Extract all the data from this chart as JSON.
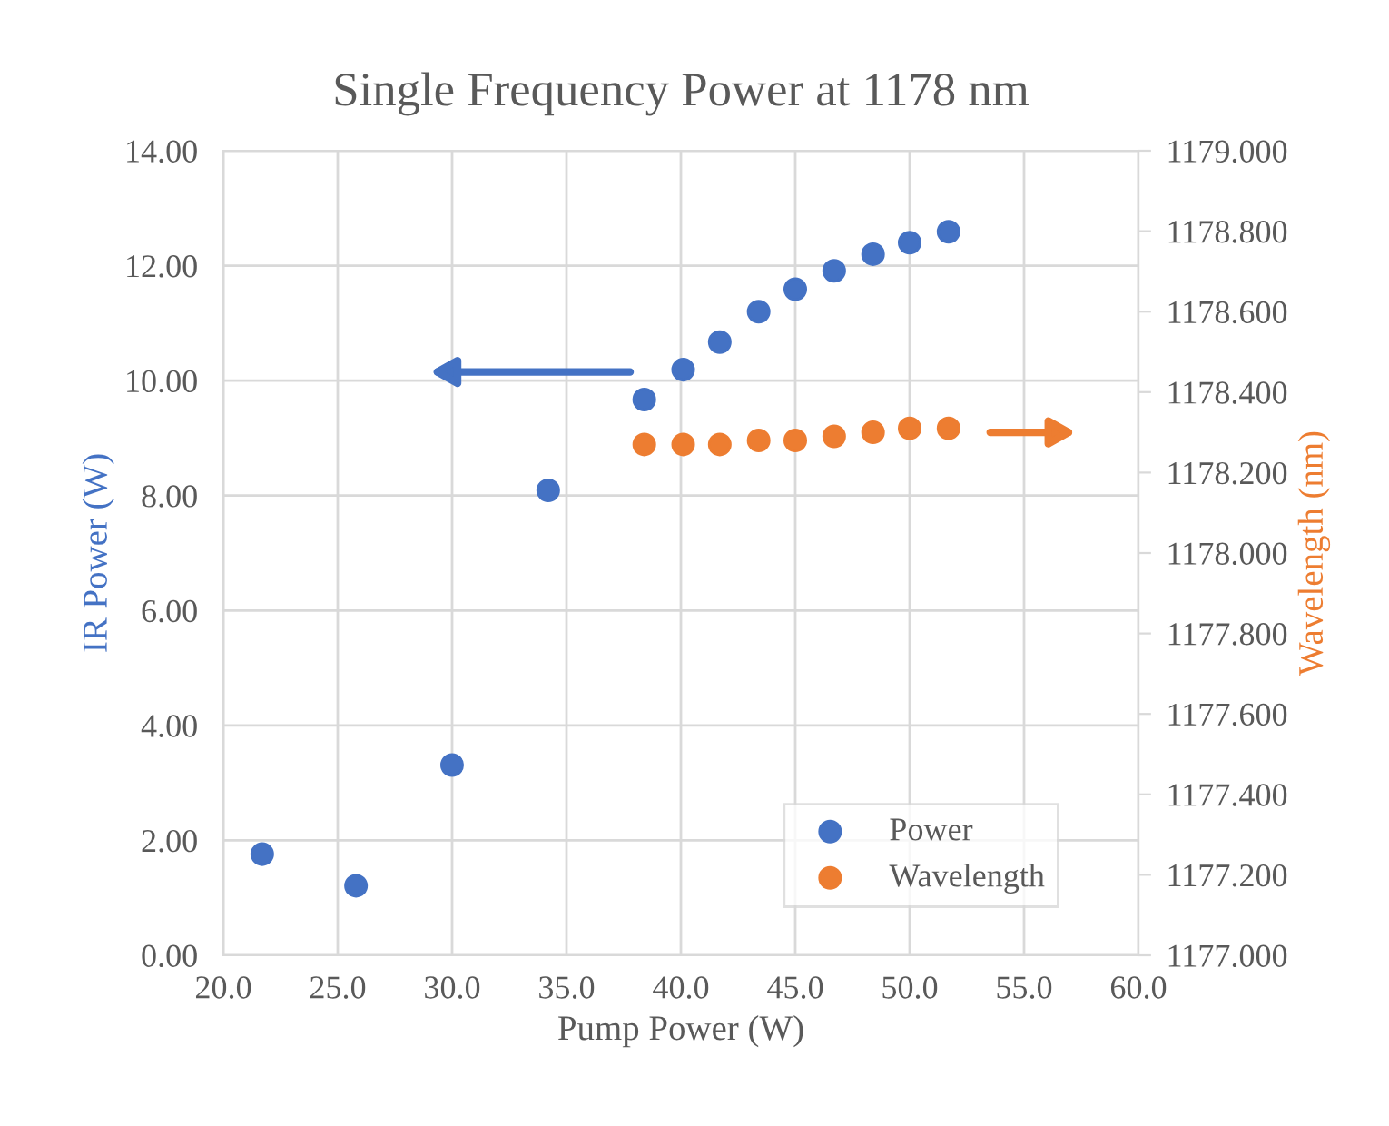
{
  "chart_data": {
    "type": "scatter",
    "title": "Single Frequency Power at 1178 nm",
    "xlabel": "Pump Power (W)",
    "ylabel": "IR Power (W)",
    "y2label": "Wavelength (nm)",
    "series": [
      {
        "name": "Power",
        "color": "#4472c4",
        "x": [
          21.7,
          25.8,
          30.0,
          34.2,
          38.4,
          40.1,
          41.7,
          43.4,
          45.0,
          46.7,
          48.4,
          50.0,
          51.7
        ],
        "values": [
          1.76,
          1.21,
          3.31,
          8.09,
          9.67,
          10.19,
          10.67,
          11.2,
          11.59,
          11.91,
          12.2,
          12.4,
          12.59
        ]
      },
      {
        "name": "Wavelength",
        "color": "#ed7d31",
        "axis": "y2",
        "x": [
          38.4,
          40.1,
          41.7,
          43.4,
          45.0,
          46.7,
          48.4,
          50.0,
          51.7
        ],
        "values": [
          1178.27,
          1178.27,
          1178.27,
          1178.28,
          1178.28,
          1178.29,
          1178.3,
          1178.31,
          1178.31
        ]
      }
    ],
    "xlim": [
      20,
      60
    ],
    "xticks": [
      {
        "value": 20,
        "label": "20.0"
      },
      {
        "value": 25,
        "label": "25.0"
      },
      {
        "value": 30,
        "label": "30.0"
      },
      {
        "value": 35,
        "label": "35.0"
      },
      {
        "value": 40,
        "label": "40.0"
      },
      {
        "value": 45,
        "label": "45.0"
      },
      {
        "value": 50,
        "label": "50.0"
      },
      {
        "value": 55,
        "label": "55.0"
      },
      {
        "value": 60,
        "label": "60.0"
      }
    ],
    "ylim": [
      0,
      14
    ],
    "yticks": [
      {
        "value": 0,
        "label": "0.00"
      },
      {
        "value": 2,
        "label": "2.00"
      },
      {
        "value": 4,
        "label": "4.00"
      },
      {
        "value": 6,
        "label": "6.00"
      },
      {
        "value": 8,
        "label": "8.00"
      },
      {
        "value": 10,
        "label": "10.00"
      },
      {
        "value": 12,
        "label": "12.00"
      },
      {
        "value": 14,
        "label": "14.00"
      }
    ],
    "y2lim": [
      1177,
      1179
    ],
    "y2ticks": [
      {
        "value": 1177,
        "label": "1177.000"
      },
      {
        "value": 1177.2,
        "label": "1177.200"
      },
      {
        "value": 1177.4,
        "label": "1177.400"
      },
      {
        "value": 1177.6,
        "label": "1177.600"
      },
      {
        "value": 1177.8,
        "label": "1177.800"
      },
      {
        "value": 1178,
        "label": "1178.000"
      },
      {
        "value": 1178.2,
        "label": "1178.200"
      },
      {
        "value": 1178.4,
        "label": "1178.400"
      },
      {
        "value": 1178.6,
        "label": "1178.600"
      },
      {
        "value": 1178.8,
        "label": "1178.800"
      },
      {
        "value": 1179,
        "label": "1179.000"
      }
    ],
    "grid": true,
    "legend": "bottom right",
    "marker": "circle"
  }
}
